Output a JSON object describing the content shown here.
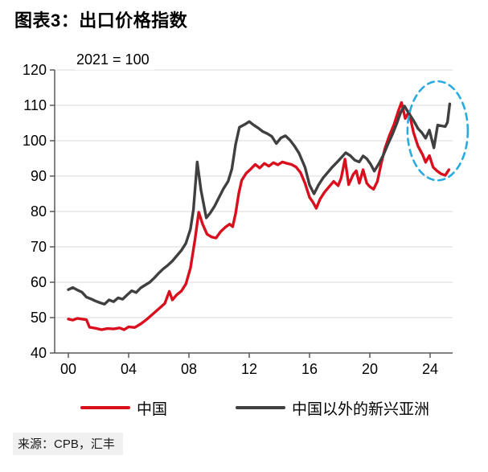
{
  "header": {
    "title": "图表3：出口价格指数"
  },
  "source": {
    "text": "来源：CPB，汇丰"
  },
  "legend": {
    "items": [
      {
        "label": "中国",
        "color": "#da0f1e"
      },
      {
        "label": "中国以外的新兴亚洲",
        "color": "#404040"
      }
    ]
  },
  "chart_data": {
    "type": "line",
    "title": "图表3：出口价格指数",
    "subtitle": "2021 = 100",
    "xlabel": "",
    "ylabel": "",
    "ylim": [
      40,
      120
    ],
    "xlim_years": [
      2000,
      2025.6
    ],
    "grid": true,
    "legend_position": "bottom",
    "y_ticks": [
      40,
      50,
      60,
      70,
      80,
      90,
      100,
      110,
      120
    ],
    "x_ticks_years": [
      2000,
      2004,
      2008,
      2012,
      2016,
      2020,
      2024
    ],
    "x_tick_labels": [
      "00",
      "04",
      "08",
      "12",
      "16",
      "20",
      "24"
    ],
    "colors": {
      "grid": "#d9d9d9",
      "axis": "#595959",
      "tick_text": "#000000",
      "highlight": "#29abe2"
    },
    "series": [
      {
        "name": "中国",
        "key": "china",
        "color": "#da0f1e",
        "points": [
          [
            2000.0,
            49.6
          ],
          [
            2000.3,
            49.3
          ],
          [
            2000.6,
            49.8
          ],
          [
            2000.9,
            49.6
          ],
          [
            2001.2,
            49.4
          ],
          [
            2001.4,
            47.3
          ],
          [
            2001.8,
            47.0
          ],
          [
            2002.2,
            46.6
          ],
          [
            2002.6,
            46.9
          ],
          [
            2003.0,
            46.8
          ],
          [
            2003.4,
            47.1
          ],
          [
            2003.7,
            46.6
          ],
          [
            2004.0,
            47.4
          ],
          [
            2004.4,
            47.2
          ],
          [
            2004.8,
            48.2
          ],
          [
            2005.2,
            49.5
          ],
          [
            2005.6,
            51.0
          ],
          [
            2006.0,
            52.5
          ],
          [
            2006.4,
            54.0
          ],
          [
            2006.7,
            57.4
          ],
          [
            2006.9,
            55.0
          ],
          [
            2007.2,
            56.5
          ],
          [
            2007.5,
            57.5
          ],
          [
            2007.8,
            59.5
          ],
          [
            2008.1,
            64.0
          ],
          [
            2008.4,
            72.0
          ],
          [
            2008.65,
            79.8
          ],
          [
            2008.9,
            76.5
          ],
          [
            2009.2,
            73.6
          ],
          [
            2009.5,
            72.8
          ],
          [
            2009.8,
            72.5
          ],
          [
            2010.1,
            74.3
          ],
          [
            2010.4,
            75.5
          ],
          [
            2010.7,
            76.4
          ],
          [
            2010.9,
            75.7
          ],
          [
            2011.1,
            79.5
          ],
          [
            2011.3,
            85.0
          ],
          [
            2011.5,
            88.8
          ],
          [
            2011.8,
            90.8
          ],
          [
            2012.1,
            92.0
          ],
          [
            2012.4,
            93.3
          ],
          [
            2012.7,
            92.3
          ],
          [
            2013.0,
            93.6
          ],
          [
            2013.3,
            92.8
          ],
          [
            2013.6,
            93.8
          ],
          [
            2013.9,
            93.2
          ],
          [
            2014.2,
            94.0
          ],
          [
            2014.5,
            93.6
          ],
          [
            2014.8,
            93.3
          ],
          [
            2015.1,
            92.6
          ],
          [
            2015.4,
            91.0
          ],
          [
            2015.7,
            88.0
          ],
          [
            2016.0,
            84.0
          ],
          [
            2016.2,
            82.8
          ],
          [
            2016.45,
            80.9
          ],
          [
            2016.7,
            83.5
          ],
          [
            2017.0,
            85.5
          ],
          [
            2017.3,
            87.0
          ],
          [
            2017.6,
            88.5
          ],
          [
            2017.9,
            87.3
          ],
          [
            2018.1,
            89.5
          ],
          [
            2018.35,
            94.8
          ],
          [
            2018.6,
            87.6
          ],
          [
            2018.9,
            90.5
          ],
          [
            2019.1,
            91.5
          ],
          [
            2019.3,
            88.0
          ],
          [
            2019.55,
            91.8
          ],
          [
            2019.8,
            88.0
          ],
          [
            2020.0,
            87.0
          ],
          [
            2020.25,
            86.3
          ],
          [
            2020.5,
            88.5
          ],
          [
            2020.75,
            93.5
          ],
          [
            2021.0,
            97.8
          ],
          [
            2021.3,
            101.5
          ],
          [
            2021.6,
            104.5
          ],
          [
            2021.9,
            108.5
          ],
          [
            2022.1,
            110.8
          ],
          [
            2022.35,
            106.3
          ],
          [
            2022.6,
            108.2
          ],
          [
            2022.9,
            102.3
          ],
          [
            2023.2,
            98.4
          ],
          [
            2023.5,
            96.1
          ],
          [
            2023.7,
            93.9
          ],
          [
            2023.95,
            95.8
          ],
          [
            2024.2,
            92.5
          ],
          [
            2024.45,
            91.5
          ],
          [
            2024.7,
            90.7
          ],
          [
            2025.0,
            90.2
          ],
          [
            2025.25,
            91.8
          ]
        ]
      },
      {
        "name": "中国以外的新兴亚洲",
        "key": "em-asia-ex-china",
        "color": "#404040",
        "points": [
          [
            2000.0,
            57.9
          ],
          [
            2000.3,
            58.5
          ],
          [
            2000.6,
            57.8
          ],
          [
            2000.9,
            57.2
          ],
          [
            2001.2,
            55.8
          ],
          [
            2001.5,
            55.3
          ],
          [
            2001.8,
            54.7
          ],
          [
            2002.1,
            54.2
          ],
          [
            2002.4,
            53.8
          ],
          [
            2002.7,
            55.0
          ],
          [
            2003.0,
            54.5
          ],
          [
            2003.3,
            55.6
          ],
          [
            2003.6,
            55.2
          ],
          [
            2003.9,
            56.4
          ],
          [
            2004.2,
            57.6
          ],
          [
            2004.5,
            57.1
          ],
          [
            2004.8,
            58.4
          ],
          [
            2005.1,
            59.2
          ],
          [
            2005.4,
            60.0
          ],
          [
            2005.7,
            61.2
          ],
          [
            2006.0,
            62.6
          ],
          [
            2006.3,
            63.8
          ],
          [
            2006.6,
            64.8
          ],
          [
            2006.9,
            66.0
          ],
          [
            2007.2,
            67.5
          ],
          [
            2007.5,
            69.0
          ],
          [
            2007.8,
            71.0
          ],
          [
            2008.1,
            75.0
          ],
          [
            2008.3,
            80.5
          ],
          [
            2008.55,
            94.0
          ],
          [
            2008.8,
            86.0
          ],
          [
            2009.15,
            78.2
          ],
          [
            2009.4,
            79.5
          ],
          [
            2009.7,
            81.5
          ],
          [
            2010.0,
            84.0
          ],
          [
            2010.3,
            86.5
          ],
          [
            2010.6,
            88.5
          ],
          [
            2010.85,
            92.0
          ],
          [
            2011.1,
            99.0
          ],
          [
            2011.35,
            103.8
          ],
          [
            2011.7,
            104.6
          ],
          [
            2012.0,
            105.4
          ],
          [
            2012.3,
            104.4
          ],
          [
            2012.6,
            103.6
          ],
          [
            2012.9,
            102.6
          ],
          [
            2013.2,
            102.0
          ],
          [
            2013.5,
            101.2
          ],
          [
            2013.8,
            99.2
          ],
          [
            2014.1,
            100.8
          ],
          [
            2014.4,
            101.4
          ],
          [
            2014.7,
            100.2
          ],
          [
            2015.0,
            98.5
          ],
          [
            2015.3,
            96.5
          ],
          [
            2015.7,
            92.5
          ],
          [
            2016.0,
            87.5
          ],
          [
            2016.3,
            85.0
          ],
          [
            2016.6,
            87.5
          ],
          [
            2016.9,
            89.5
          ],
          [
            2017.2,
            91.0
          ],
          [
            2017.5,
            92.5
          ],
          [
            2017.8,
            93.8
          ],
          [
            2018.1,
            95.2
          ],
          [
            2018.4,
            96.6
          ],
          [
            2018.7,
            95.8
          ],
          [
            2019.0,
            94.5
          ],
          [
            2019.3,
            94.0
          ],
          [
            2019.55,
            95.7
          ],
          [
            2019.8,
            94.9
          ],
          [
            2020.05,
            93.4
          ],
          [
            2020.3,
            91.4
          ],
          [
            2020.6,
            93.5
          ],
          [
            2020.9,
            96.0
          ],
          [
            2021.2,
            99.0
          ],
          [
            2021.5,
            101.8
          ],
          [
            2021.8,
            105.0
          ],
          [
            2022.05,
            108.0
          ],
          [
            2022.3,
            109.8
          ],
          [
            2022.55,
            108.0
          ],
          [
            2022.9,
            105.7
          ],
          [
            2023.2,
            103.4
          ],
          [
            2023.45,
            102.3
          ],
          [
            2023.7,
            100.7
          ],
          [
            2023.95,
            103.0
          ],
          [
            2024.25,
            98.0
          ],
          [
            2024.5,
            104.4
          ],
          [
            2024.75,
            104.2
          ],
          [
            2025.0,
            104.0
          ],
          [
            2025.15,
            105.2
          ],
          [
            2025.3,
            110.4
          ]
        ]
      }
    ],
    "highlight_ellipse": {
      "center_year": 24.5,
      "center_value": 102.8,
      "radius_years": 2.0,
      "radius_units": 14,
      "style": "dashed"
    }
  }
}
